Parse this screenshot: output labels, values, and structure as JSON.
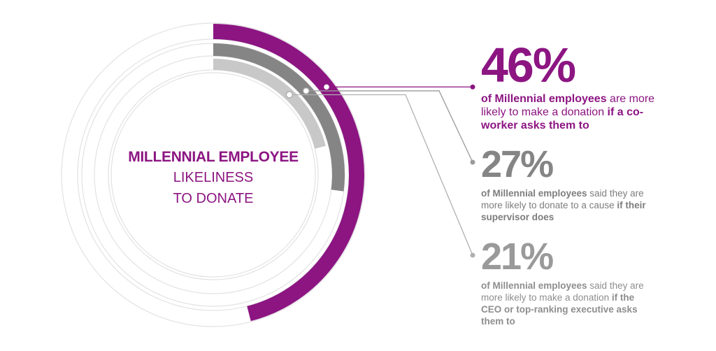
{
  "center": {
    "title": "MILLENNIAL EMPLOYEE",
    "line1": "LIKELINESS",
    "line2": "TO DONATE"
  },
  "colors": {
    "purple": "#8c1582",
    "dark_gray": "#858585",
    "light_gray": "#c8c8c8",
    "ring_outline": "#e2e2e2",
    "text_gray": "#8a8a8a"
  },
  "stats": [
    {
      "percent": "46%",
      "bold_lead": "of Millennial employees",
      "middle": " are more likely to make a donation ",
      "bold_tail": "if a co-worker asks them to"
    },
    {
      "percent": "27%",
      "bold_lead": "of Millennial employees",
      "middle": " said they are more likely to donate to a cause ",
      "bold_tail": "if their supervisor does"
    },
    {
      "percent": "21%",
      "bold_lead": "of Millennial employees",
      "middle": " said they are more likely to make a donation ",
      "bold_tail": "if the CEO or top-ranking executive asks them to"
    }
  ],
  "chart_data": {
    "type": "radial-bar",
    "series": [
      {
        "label": "46%",
        "value": 46,
        "color": "#8c1582"
      },
      {
        "label": "27%",
        "value": 27,
        "color": "#858585"
      },
      {
        "label": "21%",
        "value": 21,
        "color": "#c8c8c8"
      }
    ],
    "max": 100
  }
}
